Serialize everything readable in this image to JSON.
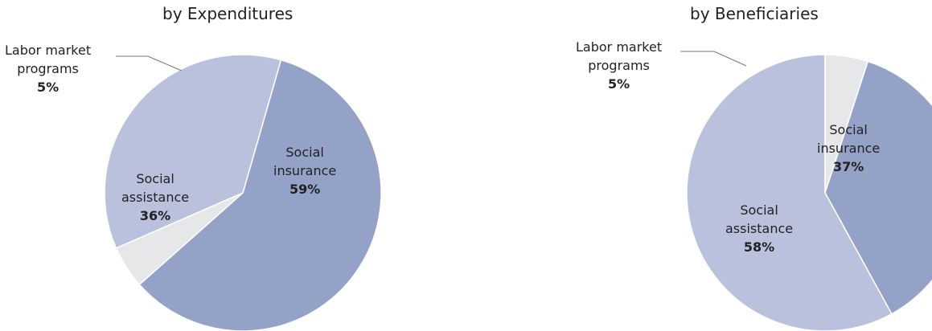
{
  "chart_data": [
    {
      "type": "pie",
      "title": "by Expenditures",
      "categories": [
        "Social insurance",
        "Labor market programs",
        "Social assistance"
      ],
      "values": [
        59,
        5,
        36
      ],
      "colors": [
        "#94a2c7",
        "#e6e7e9",
        "#b9c1dc"
      ],
      "labels": [
        {
          "line1": "Social",
          "line2": "insurance",
          "pct": "59%"
        },
        {
          "line1": "Labor market",
          "line2": "programs",
          "pct": "5%"
        },
        {
          "line1": "Social",
          "line2": "assistance",
          "pct": "36%"
        }
      ],
      "legend": "none"
    },
    {
      "type": "pie",
      "title": "by Beneficiaries",
      "categories": [
        "Social insurance",
        "Social assistance",
        "Labor market programs"
      ],
      "values": [
        37,
        58,
        5
      ],
      "colors": [
        "#94a2c7",
        "#b9c1dc",
        "#e6e7e9"
      ],
      "labels": [
        {
          "line1": "Social",
          "line2": "insurance",
          "pct": "37%"
        },
        {
          "line1": "Social",
          "line2": "assistance",
          "pct": "58%"
        },
        {
          "line1": "Labor market",
          "line2": "programs",
          "pct": "5%"
        }
      ],
      "legend": "none"
    }
  ]
}
